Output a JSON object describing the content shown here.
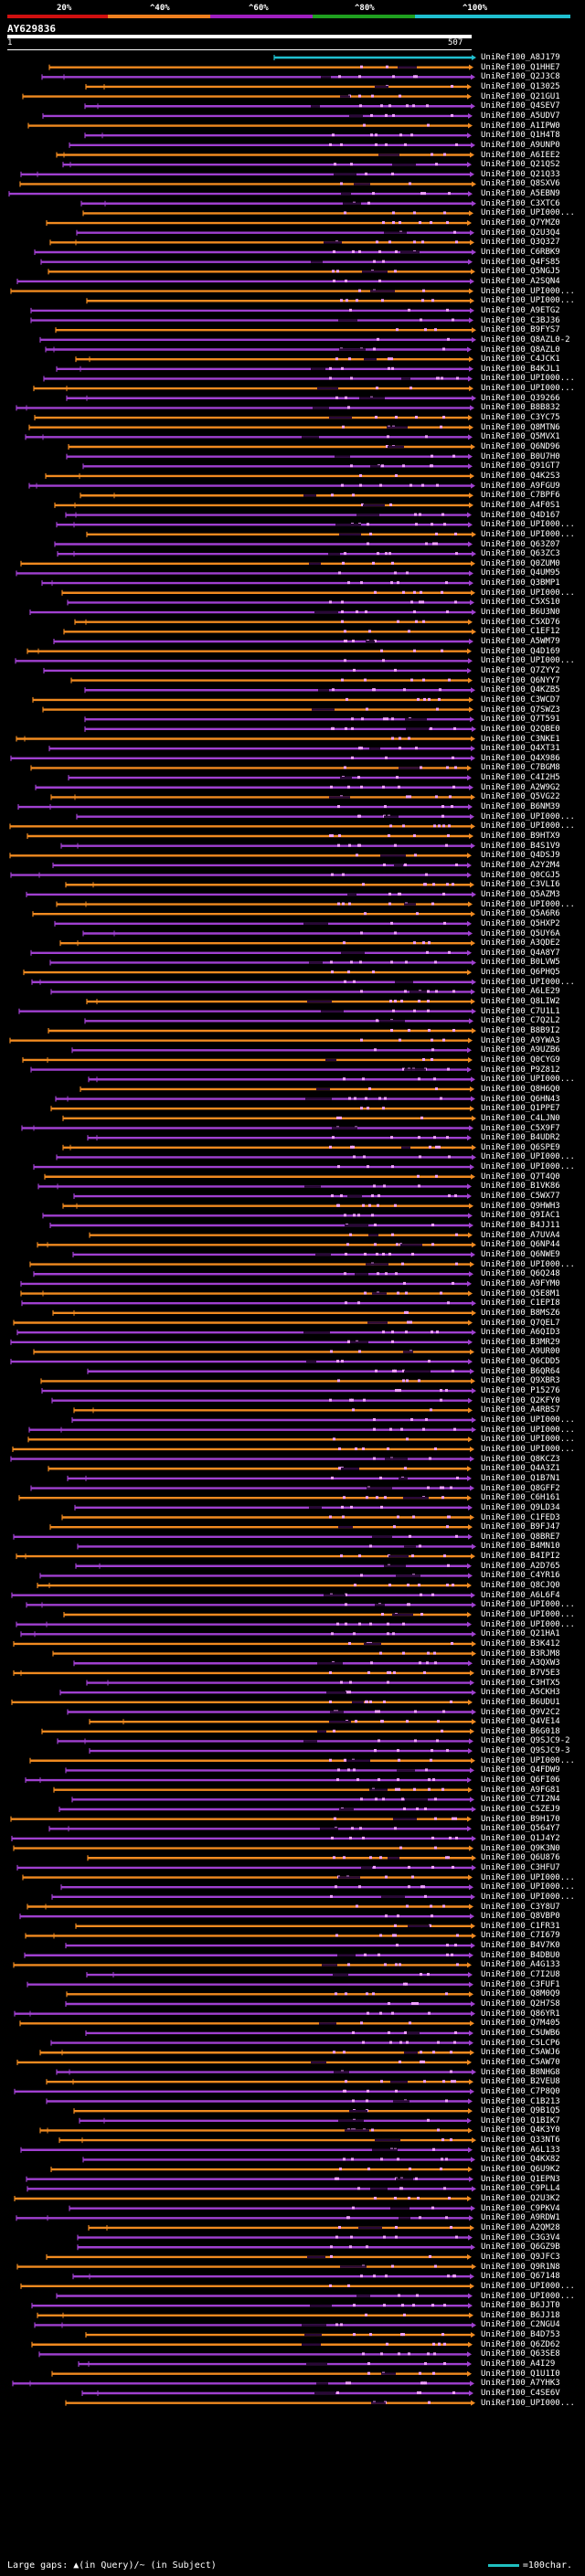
{
  "legend": {
    "labels": [
      "20%",
      "^40%",
      "^60%",
      "^80%",
      "^100%"
    ],
    "colors": [
      "#d01010",
      "#f08020",
      "#a020c0",
      "#20a020",
      "#20c0d0"
    ]
  },
  "query": {
    "name": "AY629836",
    "start": "1",
    "end": "507"
  },
  "colors": {
    "purple": "#a040d0",
    "orange": "#f08a20",
    "cyan": "#20c0d0",
    "gap": "#f0a0ff",
    "red": "#e01010",
    "green": "#20b020"
  },
  "hits": [
    "UniRef100_A8J179",
    "UniRef100_Q1HHE7",
    "UniRef100_Q2J3C8",
    "UniRef100_Q13025",
    "UniRef100_Q21GU1",
    "UniRef100_Q4SEV7",
    "UniRef100_A5UDV7",
    "UniRef100_A1IPW0",
    "UniRef100_Q1H4T8",
    "UniRef100_A9UNP0",
    "UniRef100_A6IEE2",
    "UniRef100_Q21QS2",
    "UniRef100_Q21Q33",
    "UniRef100_Q8SXV6",
    "UniRef100_A5EBN9",
    "UniRef100_C3XTC6",
    "UniRef100_UPI000...",
    "UniRef100_Q7YMZ0",
    "UniRef100_Q2U3Q4",
    "UniRef100_Q3Q327",
    "UniRef100_C6RBK9",
    "UniRef100_Q4FS85",
    "UniRef100_Q5NGJ5",
    "UniRef100_A2SQN4",
    "UniRef100_UPI000...",
    "UniRef100_UPI000...",
    "UniRef100_A9ETG2",
    "UniRef100_C3BJ36",
    "UniRef100_B9FYS7",
    "UniRef100_Q8AZL0-2",
    "UniRef100_Q8AZL0",
    "UniRef100_C4JCK1",
    "UniRef100_B4KJL1",
    "UniRef100_UPI000...",
    "UniRef100_UPI000...",
    "UniRef100_Q39266",
    "UniRef100_B8B832",
    "UniRef100_C3YC75",
    "UniRef100_Q8MTN6",
    "UniRef100_Q5MVX1",
    "UniRef100_Q6ND96",
    "UniRef100_B0U7H0",
    "UniRef100_Q91GT7",
    "UniRef100_Q4K2S3",
    "UniRef100_A9FGU9",
    "UniRef100_C7BPF6",
    "UniRef100_A4F0S1",
    "UniRef100_Q4D167",
    "UniRef100_UPI000...",
    "UniRef100_UPI000...",
    "UniRef100_Q63Z07",
    "UniRef100_Q63ZC3",
    "UniRef100_Q0ZUM0",
    "UniRef100_Q4UM95",
    "UniRef100_Q3BMP1",
    "UniRef100_UPI000...",
    "UniRef100_C5XS10",
    "UniRef100_B6U3N0",
    "UniRef100_C5XD76",
    "UniRef100_C1EF12",
    "UniRef100_A5WM79",
    "UniRef100_Q4D169",
    "UniRef100_UPI000...",
    "UniRef100_Q7ZYY2",
    "UniRef100_Q6NYY7",
    "UniRef100_Q4KZB5",
    "UniRef100_C3WCD7",
    "UniRef100_Q7SWZ3",
    "UniRef100_Q7T591",
    "UniRef100_Q2QBE0",
    "UniRef100_C3NKE1",
    "UniRef100_Q4XT31",
    "UniRef100_Q4X986",
    "UniRef100_C7BGM8",
    "UniRef100_C4I2H5",
    "UniRef100_A2W9G2",
    "UniRef100_Q5VG22",
    "UniRef100_B6NM39",
    "UniRef100_UPI000...",
    "UniRef100_UPI000...",
    "UniRef100_B9HTX9",
    "UniRef100_B4S1V9",
    "UniRef100_Q4DSJ9",
    "UniRef100_A2Y2M4",
    "UniRef100_Q0CGJ5",
    "UniRef100_C3VLI6",
    "UniRef100_Q5AZM3",
    "UniRef100_UPI000...",
    "UniRef100_Q5A6R6",
    "UniRef100_Q5HXP2",
    "UniRef100_Q5UY6A",
    "UniRef100_A3QDE2",
    "UniRef100_Q4A8Y7",
    "UniRef100_B0LVW5",
    "UniRef100_Q6PHQ5",
    "UniRef100_UPI000...",
    "UniRef100_A6LE29",
    "UniRef100_Q8LIW2",
    "UniRef100_C7U1L1",
    "UniRef100_C7Q2L2",
    "UniRef100_B8B9I2",
    "UniRef100_A9YWA3",
    "UniRef100_A9UZB6",
    "UniRef100_Q0CYG9",
    "UniRef100_P9Z812",
    "UniRef100_UPI000...",
    "UniRef100_Q8H6Q0",
    "UniRef100_Q6HN43",
    "UniRef100_Q1PPE7",
    "UniRef100_C4LJN0",
    "UniRef100_C5X9F7",
    "UniRef100_B4UDR2",
    "UniRef100_Q6SPE9",
    "UniRef100_UPI000...",
    "UniRef100_UPI000...",
    "UniRef100_Q7T4Q0",
    "UniRef100_B1VK86",
    "UniRef100_C5WX77",
    "UniRef100_Q9HWH3",
    "UniRef100_Q9IAC1",
    "UniRef100_B4JJ11",
    "UniRef100_A7UVA4",
    "UniRef100_Q6NP44",
    "UniRef100_Q6NWE9",
    "UniRef100_UPI000...",
    "UniRef100_Q6Q248",
    "UniRef100_A9FYM0",
    "UniRef100_Q5E8M1",
    "UniRef100_C1EPI8",
    "UniRef100_B8MSZ6",
    "UniRef100_Q7QEL7",
    "UniRef100_A6QID3",
    "UniRef100_B3MR29",
    "UniRef100_A9UR00",
    "UniRef100_Q6CDD5",
    "UniRef100_B6QR64",
    "UniRef100_Q9XBR3",
    "UniRef100_P15276",
    "UniRef100_Q2KFY0",
    "UniRef100_A4RBS7",
    "UniRef100_UPI000...",
    "UniRef100_UPI000...",
    "UniRef100_UPI000...",
    "UniRef100_UPI000...",
    "UniRef100_Q8KCZ3",
    "UniRef100_Q4A3Z1",
    "UniRef100_Q1B7N1",
    "UniRef100_Q8GFF2",
    "UniRef100_C6H161",
    "UniRef100_Q9LD34",
    "UniRef100_C1FED3",
    "UniRef100_B9FJ47",
    "UniRef100_Q8BRE7",
    "UniRef100_B4MN10",
    "UniRef100_B4IPI2",
    "UniRef100_A2D765",
    "UniRef100_C4YR16",
    "UniRef100_Q8CJQ0",
    "UniRef100_A6L6F4",
    "UniRef100_UPI000...",
    "UniRef100_UPI000...",
    "UniRef100_UPI000...",
    "UniRef100_Q21HA1",
    "UniRef100_B3K412",
    "UniRef100_B3RJM8",
    "UniRef100_A3QXW3",
    "UniRef100_B7V5E3",
    "UniRef100_C3HTX5",
    "UniRef100_A5CKH3",
    "UniRef100_B6UDU1",
    "UniRef100_Q9V2C2",
    "UniRef100_Q4VE14",
    "UniRef100_B6G018",
    "UniRef100_Q9SJC9-2",
    "UniRef100_Q9SJC9-3",
    "UniRef100_UPI000...",
    "UniRef100_Q4FDW9",
    "UniRef100_Q6FI06",
    "UniRef100_A9FG81",
    "UniRef100_C7I2N4",
    "UniRef100_C5ZEJ9",
    "UniRef100_B9H170",
    "UniRef100_Q564Y7",
    "UniRef100_Q1J4Y2",
    "UniRef100_Q9K3N0",
    "UniRef100_Q6U876",
    "UniRef100_C3HFU7",
    "UniRef100_UPI000...",
    "UniRef100_UPI000...",
    "UniRef100_UPI000...",
    "UniRef100_C3Y8U7",
    "UniRef100_Q8VBP0",
    "UniRef100_C1FR31",
    "UniRef100_C7I679",
    "UniRef100_B4V7K0",
    "UniRef100_B4DBU0",
    "UniRef100_A4G133",
    "UniRef100_C7I2U8",
    "UniRef100_C3FUF1",
    "UniRef100_Q8M0Q9",
    "UniRef100_Q2H7S8",
    "UniRef100_Q86YR1",
    "UniRef100_Q7M405",
    "UniRef100_C5UWB6",
    "UniRef100_C5LCP6",
    "UniRef100_C5AWJ6",
    "UniRef100_C5AW70",
    "UniRef100_B8NHG8",
    "UniRef100_B2VEU8",
    "UniRef100_C7P8Q0",
    "UniRef100_C1B213",
    "UniRef100_Q9B1Q5",
    "UniRef100_Q1BIK7",
    "UniRef100_Q4K3Y0",
    "UniRef100_Q33NT6",
    "UniRef100_A6L133",
    "UniRef100_Q4KX82",
    "UniRef100_Q6U9K2",
    "UniRef100_Q1EPN3",
    "UniRef100_C9PLL4",
    "UniRef100_Q2U3K2",
    "UniRef100_C9PKV4",
    "UniRef100_A9RDW1",
    "UniRef100_A2QM28",
    "UniRef100_C3G3V4",
    "UniRef100_Q6GZ9B",
    "UniRef100_Q9JFC3",
    "UniRef100_Q9R1N8",
    "UniRef100_Q67148",
    "UniRef100_UPI000...",
    "UniRef100_UPI000...",
    "UniRef100_B6JJT0",
    "UniRef100_B6JJ18",
    "UniRef100_C2NGU4",
    "UniRef100_B4D753",
    "UniRef100_Q6ZD62",
    "UniRef100_Q63SE8",
    "UniRef100_A4I29",
    "UniRef100_Q1U1I0",
    "UniRef100_A7YHK3",
    "UniRef100_C4SE6V",
    "UniRef100_UPI000..."
  ],
  "footer": {
    "gap_text": "Large gaps: ▲(in Query)/~ (in Subject)",
    "scale_text": "=100char."
  }
}
